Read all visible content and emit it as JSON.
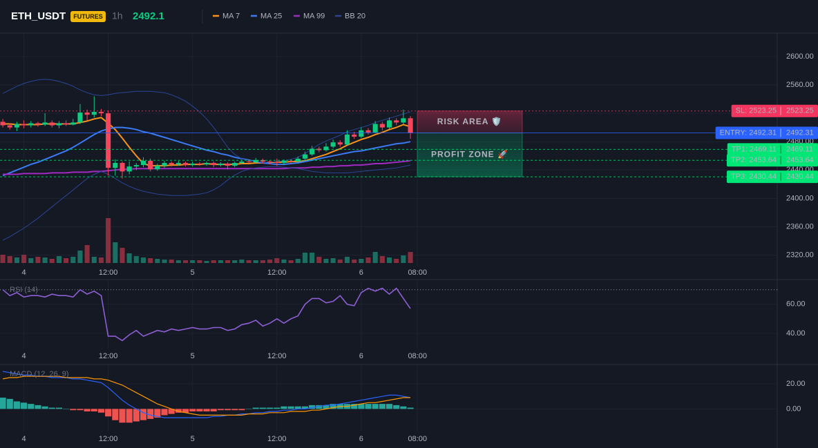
{
  "header": {
    "symbol": "ETH_USDT",
    "badge": "FUTURES",
    "interval": "1h",
    "price": 2492.1
  },
  "chart_data": [
    {
      "type": "candlestick",
      "x": [
        0,
        1,
        2,
        3,
        4,
        5,
        6,
        7,
        8,
        9,
        10,
        11,
        12,
        13,
        14,
        15,
        16,
        17,
        18,
        19,
        20,
        21,
        22,
        23,
        24,
        25,
        26,
        27,
        28,
        29,
        30,
        31,
        32,
        33,
        34,
        35,
        36,
        37,
        38,
        39,
        40,
        41,
        42,
        43,
        44,
        45,
        46,
        47,
        48,
        49,
        50,
        51,
        52,
        53,
        54,
        55,
        56,
        57,
        58
      ],
      "open": [
        2508,
        2503,
        2500,
        2505,
        2503,
        2506,
        2504,
        2507,
        2503,
        2506,
        2504,
        2507,
        2521,
        2518,
        2522,
        2520,
        2443,
        2450,
        2438,
        2445,
        2447,
        2453,
        2441,
        2446,
        2450,
        2448,
        2450,
        2447,
        2449,
        2448,
        2450,
        2447,
        2449,
        2446,
        2450,
        2452,
        2451,
        2454,
        2452,
        2451,
        2450,
        2453,
        2452,
        2456,
        2462,
        2470,
        2468,
        2473,
        2479,
        2476,
        2490,
        2487,
        2496,
        2493,
        2505,
        2500,
        2510,
        2507,
        2513
      ],
      "high": [
        2512,
        2506,
        2508,
        2510,
        2509,
        2508,
        2520,
        2510,
        2509,
        2510,
        2512,
        2533,
        2525,
        2544,
        2526,
        2524,
        2455,
        2452,
        2452,
        2450,
        2458,
        2456,
        2449,
        2453,
        2452,
        2453,
        2452,
        2452,
        2451,
        2452,
        2452,
        2451,
        2451,
        2452,
        2454,
        2455,
        2457,
        2456,
        2454,
        2456,
        2455,
        2455,
        2459,
        2466,
        2474,
        2473,
        2478,
        2483,
        2482,
        2496,
        2494,
        2500,
        2499,
        2509,
        2508,
        2514,
        2513,
        2525,
        2516
      ],
      "low": [
        2500,
        2497,
        2495,
        2499,
        2500,
        2501,
        2502,
        2500,
        2499,
        2502,
        2503,
        2505,
        2510,
        2514,
        2516,
        2432,
        2432,
        2428,
        2434,
        2440,
        2444,
        2438,
        2439,
        2443,
        2445,
        2446,
        2445,
        2445,
        2446,
        2446,
        2444,
        2445,
        2441,
        2444,
        2448,
        2449,
        2450,
        2449,
        2448,
        2446,
        2447,
        2449,
        2450,
        2454,
        2460,
        2465,
        2466,
        2471,
        2473,
        2475,
        2484,
        2485,
        2490,
        2492,
        2496,
        2498,
        2503,
        2505,
        2484
      ],
      "close": [
        2503,
        2500,
        2505,
        2503,
        2506,
        2504,
        2507,
        2503,
        2506,
        2504,
        2507,
        2521,
        2518,
        2522,
        2520,
        2443,
        2450,
        2438,
        2445,
        2447,
        2453,
        2441,
        2446,
        2450,
        2448,
        2450,
        2447,
        2449,
        2448,
        2450,
        2447,
        2449,
        2446,
        2450,
        2452,
        2451,
        2454,
        2452,
        2451,
        2450,
        2453,
        2452,
        2456,
        2462,
        2470,
        2468,
        2473,
        2479,
        2476,
        2490,
        2487,
        2496,
        2493,
        2505,
        2500,
        2510,
        2507,
        2513,
        2492
      ],
      "volume": [
        12,
        10,
        8,
        12,
        7,
        9,
        8,
        6,
        10,
        7,
        9,
        18,
        26,
        9,
        8,
        65,
        30,
        22,
        14,
        10,
        8,
        7,
        6,
        5,
        5,
        4,
        4,
        4,
        4,
        3,
        4,
        4,
        4,
        4,
        5,
        4,
        4,
        4,
        5,
        7,
        5,
        4,
        6,
        15,
        15,
        9,
        6,
        7,
        5,
        9,
        5,
        6,
        8,
        16,
        10,
        8,
        6,
        11,
        16
      ],
      "up_color": "#0ecb81",
      "down_color": "#f6465d",
      "volume_up_color": "#1d6e62",
      "volume_down_color": "#8a2d3d",
      "series": [
        {
          "name": "MA 7",
          "color": "#f7931a",
          "values": [
            2505,
            2505,
            2504,
            2504,
            2504,
            2504,
            2505,
            2505,
            2505,
            2505,
            2505,
            2507,
            2509,
            2512,
            2514,
            2506,
            2497,
            2485,
            2472,
            2460,
            2449,
            2446,
            2446,
            2446,
            2447,
            2447,
            2448,
            2448,
            2448,
            2449,
            2448,
            2448,
            2448,
            2448,
            2449,
            2449,
            2450,
            2450,
            2451,
            2451,
            2451,
            2452,
            2452,
            2453,
            2456,
            2459,
            2462,
            2466,
            2470,
            2475,
            2479,
            2483,
            2486,
            2490,
            2493,
            2497,
            2500,
            2504,
            2501
          ]
        },
        {
          "name": "MA 25",
          "color": "#3b7bf6",
          "values": [
            2432,
            2436,
            2440,
            2444,
            2448,
            2451,
            2455,
            2459,
            2463,
            2467,
            2472,
            2478,
            2484,
            2490,
            2495,
            2498,
            2500,
            2500,
            2499,
            2497,
            2494,
            2492,
            2489,
            2486,
            2483,
            2480,
            2477,
            2474,
            2471,
            2468,
            2466,
            2463,
            2461,
            2458,
            2456,
            2454,
            2452,
            2450,
            2449,
            2448,
            2448,
            2449,
            2450,
            2452,
            2454,
            2456,
            2458,
            2460,
            2462,
            2464,
            2466,
            2467,
            2469,
            2471,
            2473,
            2475,
            2477,
            2478,
            2480
          ]
        },
        {
          "name": "MA 99",
          "color": "#a12bc2",
          "values": [
            2434,
            2434,
            2434,
            2435,
            2435,
            2435,
            2435,
            2436,
            2436,
            2436,
            2437,
            2437,
            2437,
            2438,
            2438,
            2439,
            2440,
            2441,
            2441,
            2442,
            2442,
            2442,
            2442,
            2442,
            2442,
            2442,
            2442,
            2442,
            2442,
            2442,
            2442,
            2442,
            2442,
            2442,
            2442,
            2442,
            2442,
            2442,
            2442,
            2442,
            2442,
            2443,
            2443,
            2443,
            2444,
            2444,
            2445,
            2445,
            2446,
            2446,
            2447,
            2447,
            2448,
            2449,
            2449,
            2450,
            2451,
            2452,
            2453
          ]
        },
        {
          "name": "BB 20",
          "color": "#2a4596",
          "upper": [
            2548,
            2553,
            2558,
            2562,
            2565,
            2567,
            2568,
            2567,
            2565,
            2562,
            2558,
            2553,
            2549,
            2546,
            2545,
            2546,
            2548,
            2549,
            2550,
            2551,
            2551,
            2551,
            2550,
            2549,
            2546,
            2542,
            2537,
            2530,
            2522,
            2512,
            2500,
            2486,
            2472,
            2462,
            2456,
            2453,
            2452,
            2451,
            2451,
            2452,
            2453,
            2455,
            2458,
            2463,
            2470,
            2476,
            2481,
            2485,
            2489,
            2494,
            2497,
            2500,
            2503,
            2507,
            2510,
            2513,
            2516,
            2519,
            2522
          ],
          "lower": [
            2341,
            2346,
            2352,
            2358,
            2365,
            2372,
            2380,
            2388,
            2396,
            2404,
            2412,
            2420,
            2428,
            2434,
            2438,
            2434,
            2428,
            2422,
            2417,
            2413,
            2410,
            2408,
            2406,
            2405,
            2404,
            2404,
            2404,
            2405,
            2406,
            2408,
            2412,
            2418,
            2426,
            2433,
            2438,
            2441,
            2443,
            2444,
            2445,
            2445,
            2444,
            2443,
            2442,
            2440,
            2438,
            2437,
            2436,
            2436,
            2436,
            2436,
            2437,
            2438,
            2439,
            2440,
            2441,
            2442,
            2443,
            2445,
            2447
          ]
        }
      ],
      "levels": [
        {
          "label": "SL: 2523.25",
          "value": 2523.25,
          "color": "#f23660",
          "text_color": "#ffffff",
          "line": "dotted"
        },
        {
          "label": "ENTRY: 2492.31",
          "value": 2492.31,
          "color": "#2962ff",
          "text_color": "#ffffff",
          "line": "solid"
        },
        {
          "label": "TP1: 2469.11",
          "value": 2469.11,
          "color": "#00e676",
          "text_color": "#0b1a12",
          "line": "dashed"
        },
        {
          "label": "TP2: 2453.64",
          "value": 2453.64,
          "color": "#00e676",
          "text_color": "#0b1a12",
          "line": "dashed"
        },
        {
          "label": "TP3: 2430.44",
          "value": 2430.44,
          "color": "#00e676",
          "text_color": "#0b1a12",
          "line": "dashed"
        }
      ],
      "zones": [
        {
          "label": "RISK AREA 🛡️",
          "color": "#f23660",
          "text_color": "#ff4d7d"
        },
        {
          "label": "PROFIT ZONE 🚀",
          "color": "#00c47a",
          "text_color": "#3ddc97"
        }
      ],
      "xlim": [
        -0.4,
        110.2
      ],
      "xticks": [
        {
          "value": 3,
          "label": "4"
        },
        {
          "value": 15,
          "label": "12:00"
        },
        {
          "value": 27,
          "label": "5"
        },
        {
          "value": 39,
          "label": "12:00"
        },
        {
          "value": 51,
          "label": "6"
        },
        {
          "value": 59,
          "label": "08:00"
        }
      ],
      "ylim": [
        2305,
        2633
      ],
      "yticks": [
        {
          "value": 2320,
          "label": "2320.00"
        },
        {
          "value": 2360,
          "label": "2360.00"
        },
        {
          "value": 2400,
          "label": "2400.00"
        },
        {
          "value": 2440,
          "label": "2440.00"
        },
        {
          "value": 2480,
          "label": "2480.00"
        },
        {
          "value": 2520,
          "label": "2520.00"
        },
        {
          "value": 2560,
          "label": "2560.00"
        },
        {
          "value": 2600,
          "label": "2600.00"
        }
      ],
      "grid": true
    },
    {
      "type": "line",
      "title": "RSI (14)",
      "color": "#8e5fd6",
      "values": [
        70,
        66,
        68,
        65,
        66,
        66,
        65,
        67,
        66,
        66,
        65,
        70,
        67,
        69,
        66,
        38,
        38,
        35,
        39,
        42,
        38,
        40,
        42,
        41,
        43,
        42,
        43,
        44,
        43,
        43,
        44,
        44,
        42,
        43,
        46,
        47,
        49,
        45,
        47,
        50,
        47,
        50,
        52,
        60,
        64,
        64,
        61,
        62,
        66,
        60,
        59,
        68,
        71,
        69,
        71,
        67,
        71,
        64,
        57
      ],
      "level": 70,
      "xlim": [
        -0.4,
        110.2
      ],
      "xticks": [
        {
          "value": 3,
          "label": "4"
        },
        {
          "value": 15,
          "label": "12:00"
        },
        {
          "value": 27,
          "label": "5"
        },
        {
          "value": 39,
          "label": "12:00"
        },
        {
          "value": 51,
          "label": "6"
        },
        {
          "value": 59,
          "label": "08:00"
        }
      ],
      "ylim": [
        29.5,
        77
      ],
      "yticks": [
        {
          "value": 40,
          "label": "40.00"
        },
        {
          "value": 60,
          "label": "60.00"
        }
      ],
      "grid": true
    },
    {
      "type": "macd",
      "title": "MACD (12, 26, 9)",
      "macd": [
        30,
        29,
        28,
        27,
        27,
        26,
        26,
        25,
        25,
        25,
        24,
        24,
        23,
        22,
        21,
        17,
        12,
        7,
        3,
        0,
        -3,
        -5,
        -6,
        -7,
        -7,
        -7,
        -7,
        -7,
        -7,
        -7,
        -6,
        -6,
        -5,
        -5,
        -4,
        -4,
        -3,
        -3,
        -2,
        -2,
        -1,
        -1,
        0,
        0,
        1,
        2,
        3,
        3,
        4,
        5,
        6,
        7,
        8,
        9,
        10,
        11,
        11,
        10,
        9
      ],
      "signal": [
        24,
        25,
        25,
        26,
        26,
        26,
        26,
        26,
        26,
        25,
        25,
        25,
        25,
        24,
        24,
        23,
        21,
        19,
        16,
        13,
        10,
        7,
        4,
        2,
        0,
        -2,
        -3,
        -4,
        -5,
        -5,
        -5,
        -5,
        -5,
        -5,
        -5,
        -4,
        -4,
        -4,
        -3,
        -3,
        -3,
        -2,
        -2,
        -2,
        -1,
        -1,
        0,
        1,
        2,
        2,
        3,
        4,
        5,
        5,
        6,
        7,
        8,
        9,
        9
      ],
      "histogram": [
        9,
        8,
        6,
        5,
        4,
        3,
        2,
        1,
        1,
        0,
        -1,
        -1,
        -2,
        -2,
        -3,
        -6,
        -9,
        -11,
        -11,
        -10,
        -9,
        -8,
        -7,
        -5,
        -4,
        -3,
        -3,
        -2,
        -2,
        -2,
        -2,
        -1,
        -1,
        -1,
        -1,
        0,
        1,
        1,
        1,
        1,
        2,
        2,
        2,
        2,
        3,
        3,
        3,
        4,
        4,
        4,
        4,
        4,
        4,
        4,
        4,
        4,
        3,
        2,
        1
      ],
      "macd_color": "#2962ff",
      "signal_color": "#ff9800",
      "up_color": "#26a69a",
      "down_color": "#ef5350",
      "xlim": [
        -0.4,
        110.2
      ],
      "xticks": [
        {
          "value": 3,
          "label": "4"
        },
        {
          "value": 15,
          "label": "12:00"
        },
        {
          "value": 27,
          "label": "5"
        },
        {
          "value": 39,
          "label": "12:00"
        },
        {
          "value": 51,
          "label": "6"
        },
        {
          "value": 59,
          "label": "08:00"
        }
      ],
      "ylim": [
        -18,
        35.5
      ],
      "yticks": [
        {
          "value": 0,
          "label": "0.00"
        },
        {
          "value": 20,
          "label": "20.00"
        }
      ],
      "grid": true
    }
  ]
}
